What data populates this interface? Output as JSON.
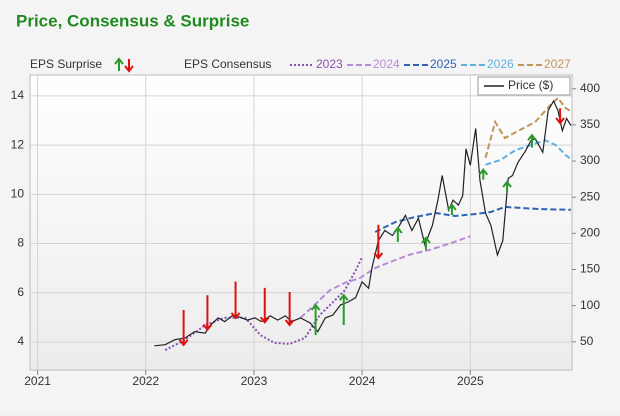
{
  "chart_data": {
    "type": "line",
    "title": "Price, Consensus & Surprise",
    "surprise_label": "EPS Surprise",
    "legend_title": "EPS Consensus",
    "xlim": [
      2020.93,
      2025.94
    ],
    "xticks": [
      2021,
      2022,
      2023,
      2024,
      2025
    ],
    "ylim": [
      2.86,
      14.85
    ],
    "yticks": [
      4,
      6,
      8,
      10,
      12,
      14
    ],
    "y2lim": [
      11,
      419
    ],
    "y2ticks": [
      50,
      100,
      150,
      200,
      250,
      300,
      350,
      400
    ],
    "grid": true,
    "series": [
      {
        "name": "2023",
        "color": "#8a4fb0",
        "dash": "dotted",
        "x": [
          2022.18,
          2022.36,
          2022.55,
          2022.73,
          2022.92,
          2023.06,
          2023.19,
          2023.33,
          2023.47,
          2023.61,
          2023.75,
          2023.84,
          2023.94,
          2024.0
        ],
        "values": [
          3.67,
          4.08,
          4.69,
          4.98,
          4.98,
          4.28,
          3.96,
          3.92,
          4.16,
          5.1,
          5.7,
          6.1,
          6.9,
          7.45
        ]
      },
      {
        "name": "2024",
        "color": "#b98ad6",
        "dash": "dashed",
        "x": [
          2023.43,
          2023.56,
          2023.7,
          2023.84,
          2023.98,
          2024.12,
          2024.26,
          2024.44,
          2024.63,
          2024.81,
          2025.0
        ],
        "values": [
          4.98,
          5.5,
          6.1,
          6.4,
          6.6,
          7.0,
          7.25,
          7.55,
          7.75,
          8.0,
          8.3
        ]
      },
      {
        "name": "2025",
        "color": "#2e64b4",
        "dash": "dashed",
        "x": [
          2024.12,
          2024.31,
          2024.49,
          2024.68,
          2024.86,
          2025.05,
          2025.19,
          2025.32,
          2025.46,
          2025.65,
          2025.93
        ],
        "values": [
          8.47,
          8.88,
          9.08,
          9.24,
          9.12,
          9.2,
          9.28,
          9.49,
          9.45,
          9.4,
          9.37
        ]
      },
      {
        "name": "2026",
        "color": "#5fb0e0",
        "dash": "dashed",
        "x": [
          2025.14,
          2025.28,
          2025.42,
          2025.56,
          2025.69,
          2025.79,
          2025.88,
          2025.94
        ],
        "values": [
          11.2,
          11.4,
          11.8,
          12.0,
          12.2,
          12.0,
          11.6,
          11.4
        ]
      },
      {
        "name": "2027",
        "color": "#c0945a",
        "dash": "dashed",
        "x": [
          2025.14,
          2025.23,
          2025.32,
          2025.46,
          2025.6,
          2025.74,
          2025.81,
          2025.88,
          2025.94
        ],
        "values": [
          11.48,
          12.94,
          12.29,
          12.62,
          12.94,
          13.63,
          13.92,
          13.51,
          13.35
        ]
      },
      {
        "name": "Price ($)",
        "color": "#222222",
        "dash": "solid",
        "axis": "y2",
        "x": [
          2022.08,
          2022.18,
          2022.27,
          2022.36,
          2022.45,
          2022.55,
          2022.59,
          2022.67,
          2022.73,
          2022.8,
          2022.87,
          2022.94,
          2023.01,
          2023.07,
          2023.15,
          2023.22,
          2023.29,
          2023.35,
          2023.43,
          2023.52,
          2023.59,
          2023.66,
          2023.73,
          2023.8,
          2023.87,
          2023.94,
          2024.0,
          2024.06,
          2024.09,
          2024.15,
          2024.21,
          2024.28,
          2024.33,
          2024.4,
          2024.46,
          2024.52,
          2024.58,
          2024.65,
          2024.7,
          2024.74,
          2024.8,
          2024.84,
          2024.89,
          2024.93,
          2024.96,
          2025.0,
          2025.05,
          2025.09,
          2025.14,
          2025.19,
          2025.25,
          2025.3,
          2025.35,
          2025.39,
          2025.44,
          2025.51,
          2025.56,
          2025.6,
          2025.67,
          2025.72,
          2025.77,
          2025.81,
          2025.85,
          2025.89,
          2025.93
        ],
        "values": [
          44.5,
          46,
          53,
          55,
          64,
          62,
          72,
          83,
          78,
          86,
          84,
          80,
          83,
          78,
          86,
          80,
          86,
          78,
          83,
          76,
          64,
          83,
          87,
          101,
          105,
          111,
          133,
          124,
          152,
          190,
          204,
          197,
          207,
          225,
          204,
          221,
          184,
          211,
          246,
          280,
          232,
          246,
          239,
          252,
          317,
          294,
          345,
          273,
          228,
          211,
          170,
          190,
          276,
          280,
          298,
          314,
          328,
          331,
          312,
          370,
          383,
          370,
          342,
          359,
          349
        ]
      }
    ],
    "surprises": {
      "up_color": "#2a9a2a",
      "down_color": "#e01010",
      "x": [
        2022.35,
        2022.57,
        2022.83,
        2023.1,
        2023.33,
        2023.57,
        2023.83,
        2024.15,
        2024.33,
        2024.59,
        2024.83,
        2025.12,
        2025.34,
        2025.57,
        2025.83
      ],
      "consensus": [
        5.3,
        5.9,
        6.45,
        6.2,
        6.03,
        4.28,
        4.69,
        8.76,
        8.07,
        7.74,
        9.16,
        10.6,
        10.1,
        11.9,
        13.5
      ],
      "actual": [
        3.88,
        4.5,
        4.98,
        4.8,
        4.69,
        5.5,
        5.9,
        7.41,
        8.63,
        8.23,
        9.57,
        11.0,
        10.5,
        12.4,
        12.9
      ]
    }
  }
}
